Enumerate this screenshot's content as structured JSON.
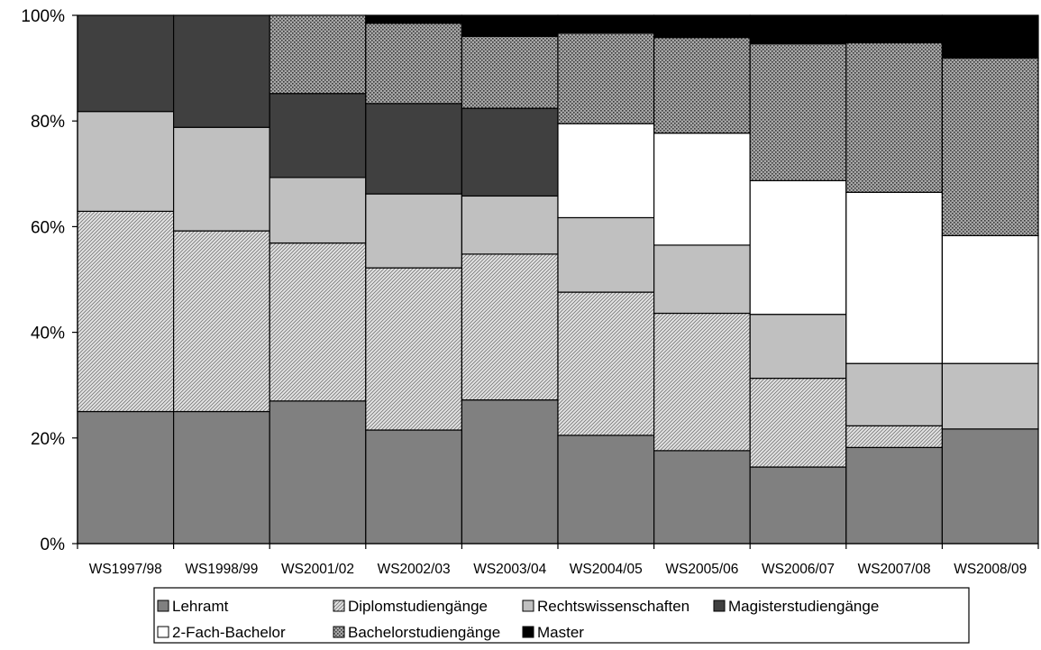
{
  "chart_data": {
    "type": "bar",
    "stacked": true,
    "percent": true,
    "categories": [
      "WS1997/98",
      "WS1998/99",
      "WS2001/02",
      "WS2002/03",
      "WS2003/04",
      "WS2004/05",
      "WS2005/06",
      "WS2006/07",
      "WS2007/08",
      "WS2008/09"
    ],
    "ylim": [
      0,
      100
    ],
    "yticks": [
      "0%",
      "20%",
      "40%",
      "60%",
      "80%",
      "100%"
    ],
    "legend_position": "bottom",
    "series": [
      {
        "name": "Lehramt",
        "pattern": "solid-gray",
        "values": [
          25,
          25,
          27,
          21.5,
          27.2,
          20.5,
          17.6,
          14.5,
          18.2,
          21.7
        ]
      },
      {
        "name": "Diplomstudiengänge",
        "pattern": "diagonal-hatch",
        "values": [
          37.9,
          34.2,
          29.9,
          30.7,
          27.6,
          27.1,
          26.0,
          16.8,
          4.1,
          0
        ]
      },
      {
        "name": "Rechtswissenschaften",
        "pattern": "light-gray",
        "values": [
          18.9,
          19.6,
          12.4,
          14.0,
          11.0,
          14.1,
          12.9,
          12.1,
          11.8,
          12.4
        ]
      },
      {
        "name": "Magisterstudiengänge",
        "pattern": "dark-gray",
        "values": [
          18.2,
          21.2,
          15.9,
          17.1,
          16.6,
          0,
          0,
          0,
          0,
          0
        ]
      },
      {
        "name": "2-Fach-Bachelor",
        "pattern": "white",
        "values": [
          0,
          0,
          0,
          0,
          0,
          17.8,
          21.2,
          25.3,
          32.4,
          24.2
        ]
      },
      {
        "name": "Bachelorstudiengänge",
        "pattern": "dotted-dark",
        "values": [
          0,
          0,
          14.8,
          15.2,
          13.6,
          17.1,
          18.1,
          25.9,
          28.3,
          33.6
        ]
      },
      {
        "name": "Master",
        "pattern": "black",
        "values": [
          0,
          0,
          0,
          1.5,
          4.0,
          3.4,
          4.2,
          5.4,
          5.2,
          8.1
        ]
      }
    ]
  },
  "legend": {
    "items": [
      {
        "label": "Lehramt",
        "pattern": "solid-gray"
      },
      {
        "label": "Diplomstudiengänge",
        "pattern": "diagonal-hatch"
      },
      {
        "label": "Rechtswissenschaften",
        "pattern": "light-gray"
      },
      {
        "label": "Magisterstudiengänge",
        "pattern": "dark-gray"
      },
      {
        "label": "2-Fach-Bachelor",
        "pattern": "white"
      },
      {
        "label": "Bachelorstudiengänge",
        "pattern": "dotted-dark"
      },
      {
        "label": "Master",
        "pattern": "black"
      }
    ]
  }
}
